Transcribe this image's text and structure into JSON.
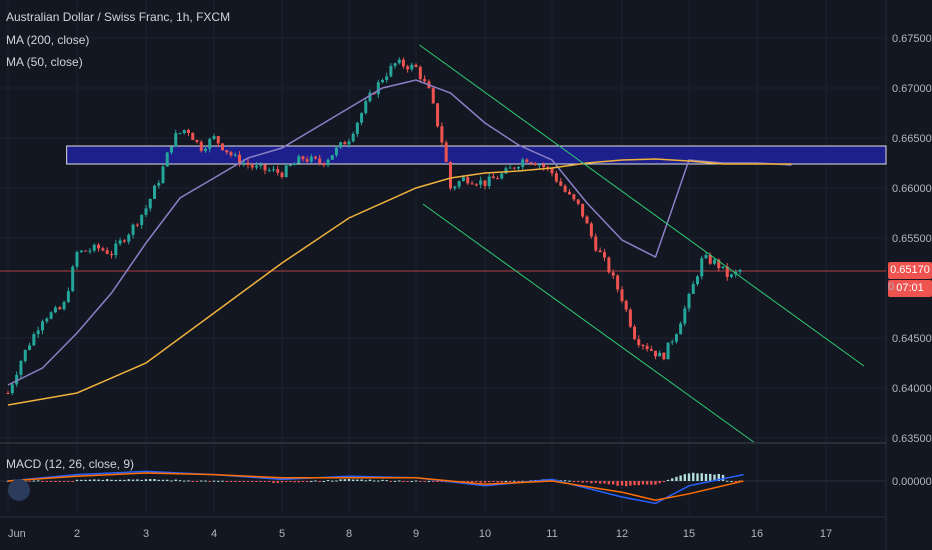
{
  "legend": {
    "title": "Australian Dollar / Swiss Franc, 1h, FXCM",
    "ma200": "MA (200, close)",
    "ma50": "MA (50, close)",
    "macd": "MACD (12, 26, close, 9)"
  },
  "price_tags": {
    "last_price": "0.65170",
    "countdown": "07:01",
    "hidden_char": "0"
  },
  "colors": {
    "background": "#131722",
    "up": "#26a69a",
    "down": "#ef5350",
    "ma200": "#f0b23b",
    "ma50": "#8b7fc6",
    "zone": "#1c1f8c",
    "trendline": "#2ecc71",
    "last_price": "#ef5350",
    "macd_line": "#2962ff",
    "signal_line": "#ff6d00"
  },
  "icons": {
    "logo": "tradingview-logo-icon"
  },
  "chart_data": {
    "type": "candlestick",
    "x_ticks": [
      "Jun",
      "2",
      "3",
      "4",
      "5",
      "8",
      "9",
      "10",
      "11",
      "12",
      "15",
      "16",
      "17"
    ],
    "price_ticks": [
      "0.67500",
      "0.67000",
      "0.66500",
      "0.66000",
      "0.65500",
      "0.64500",
      "0.64000",
      "0.63500"
    ],
    "price_range": [
      0.6335,
      0.678
    ],
    "last_price": 0.6517,
    "macd_ticks": [
      "0.00000"
    ],
    "zone": {
      "from_day": 0.85,
      "to_day": 13.9,
      "low": 0.6624,
      "high": 0.6642
    },
    "channel_upper": {
      "start": [
        6.05,
        0.6743
      ],
      "end": [
        12.55,
        0.6422
      ]
    },
    "channel_lower": {
      "start": [
        6.1,
        0.6584
      ],
      "end": [
        10.95,
        0.6346
      ]
    },
    "ma50_points": [
      [
        0,
        0.6403
      ],
      [
        0.5,
        0.642
      ],
      [
        1,
        0.6455
      ],
      [
        1.5,
        0.6495
      ],
      [
        2,
        0.6545
      ],
      [
        2.5,
        0.659
      ],
      [
        3,
        0.661
      ],
      [
        3.5,
        0.663
      ],
      [
        4,
        0.664
      ],
      [
        4.5,
        0.666
      ],
      [
        5,
        0.668
      ],
      [
        5.5,
        0.67
      ],
      [
        6,
        0.6708
      ],
      [
        6.5,
        0.6695
      ],
      [
        7,
        0.6665
      ],
      [
        7.5,
        0.6643
      ],
      [
        8,
        0.6628
      ],
      [
        8.5,
        0.6585
      ],
      [
        9,
        0.6548
      ],
      [
        9.5,
        0.6531
      ],
      [
        10,
        0.6628
      ],
      [
        10.5,
        0.6625
      ],
      [
        11,
        0.6625
      ],
      [
        11.5,
        0.6623
      ]
    ],
    "ma200_points": [
      [
        0,
        0.6383
      ],
      [
        1,
        0.6395
      ],
      [
        2,
        0.6425
      ],
      [
        3,
        0.6475
      ],
      [
        4,
        0.6525
      ],
      [
        5,
        0.657
      ],
      [
        6,
        0.66
      ],
      [
        6.5,
        0.661
      ],
      [
        7,
        0.6615
      ],
      [
        7.5,
        0.6617
      ],
      [
        8,
        0.662
      ],
      [
        8.5,
        0.6625
      ],
      [
        9,
        0.6628
      ],
      [
        9.5,
        0.6629
      ],
      [
        10,
        0.6627
      ],
      [
        10.5,
        0.6624
      ],
      [
        11,
        0.6624
      ],
      [
        11.5,
        0.6624
      ]
    ],
    "price_points": [
      [
        0,
        0.6395
      ],
      [
        0.2,
        0.643
      ],
      [
        0.5,
        0.647
      ],
      [
        0.8,
        0.648
      ],
      [
        1,
        0.6535
      ],
      [
        1.3,
        0.654
      ],
      [
        1.5,
        0.6535
      ],
      [
        1.8,
        0.656
      ],
      [
        2,
        0.658
      ],
      [
        2.2,
        0.661
      ],
      [
        2.4,
        0.665
      ],
      [
        2.6,
        0.666
      ],
      [
        2.8,
        0.664
      ],
      [
        3,
        0.665
      ],
      [
        3.3,
        0.663
      ],
      [
        3.6,
        0.662
      ],
      [
        4,
        0.6615
      ],
      [
        4.3,
        0.663
      ],
      [
        4.6,
        0.6625
      ],
      [
        5,
        0.665
      ],
      [
        5.3,
        0.669
      ],
      [
        5.5,
        0.671
      ],
      [
        5.7,
        0.6725
      ],
      [
        6,
        0.672
      ],
      [
        6.2,
        0.6695
      ],
      [
        6.4,
        0.664
      ],
      [
        6.5,
        0.66
      ],
      [
        6.7,
        0.661
      ],
      [
        7,
        0.6605
      ],
      [
        7.3,
        0.6615
      ],
      [
        7.6,
        0.663
      ],
      [
        7.8,
        0.6625
      ],
      [
        8,
        0.6615
      ],
      [
        8.2,
        0.6595
      ],
      [
        8.4,
        0.658
      ],
      [
        8.6,
        0.6545
      ],
      [
        8.8,
        0.652
      ],
      [
        9,
        0.649
      ],
      [
        9.2,
        0.645
      ],
      [
        9.4,
        0.644
      ],
      [
        9.6,
        0.643
      ],
      [
        9.8,
        0.6455
      ],
      [
        10,
        0.649
      ],
      [
        10.2,
        0.653
      ],
      [
        10.4,
        0.6525
      ],
      [
        10.6,
        0.651
      ],
      [
        10.8,
        0.652
      ]
    ],
    "macd_line": [
      [
        0,
        0.0
      ],
      [
        1,
        0.0004
      ],
      [
        2,
        0.0006
      ],
      [
        3,
        0.0004
      ],
      [
        4,
        0.0001
      ],
      [
        5,
        0.0003
      ],
      [
        6,
        0.0002
      ],
      [
        7,
        -0.0003
      ],
      [
        8,
        0.0001
      ],
      [
        9,
        -0.001
      ],
      [
        9.5,
        -0.0014
      ],
      [
        10,
        -0.0003
      ],
      [
        10.8,
        0.0004
      ]
    ],
    "signal_line": [
      [
        0,
        0.0
      ],
      [
        1,
        0.0003
      ],
      [
        2,
        0.0005
      ],
      [
        3,
        0.0004
      ],
      [
        4,
        0.0002
      ],
      [
        5,
        0.0002
      ],
      [
        6,
        0.0002
      ],
      [
        7,
        -0.0002
      ],
      [
        8,
        0.0
      ],
      [
        9,
        -0.0007
      ],
      [
        9.5,
        -0.0012
      ],
      [
        10,
        -0.0008
      ],
      [
        10.8,
        0.0
      ]
    ],
    "macd_histogram": [
      [
        1,
        0.0001
      ],
      [
        2,
        0.0001
      ],
      [
        3,
        0.0
      ],
      [
        4,
        -0.0001
      ],
      [
        5,
        0.0001
      ],
      [
        6,
        0.0
      ],
      [
        7,
        -0.0001
      ],
      [
        8,
        0.0001
      ],
      [
        9,
        -0.0003
      ],
      [
        9.5,
        -0.0002
      ],
      [
        10,
        0.0005
      ],
      [
        10.5,
        0.0004
      ]
    ]
  }
}
